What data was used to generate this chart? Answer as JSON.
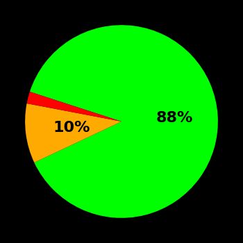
{
  "slices": [
    88,
    10,
    2
  ],
  "colors": [
    "#00ff00",
    "#ffaa00",
    "#ff0000"
  ],
  "labels": [
    "88%",
    "10%",
    ""
  ],
  "background_color": "#000000",
  "startangle": 162,
  "label_fontsize": 16,
  "label_fontweight": "bold",
  "green_label_r": 0.55,
  "yellow_label_r": 0.52
}
